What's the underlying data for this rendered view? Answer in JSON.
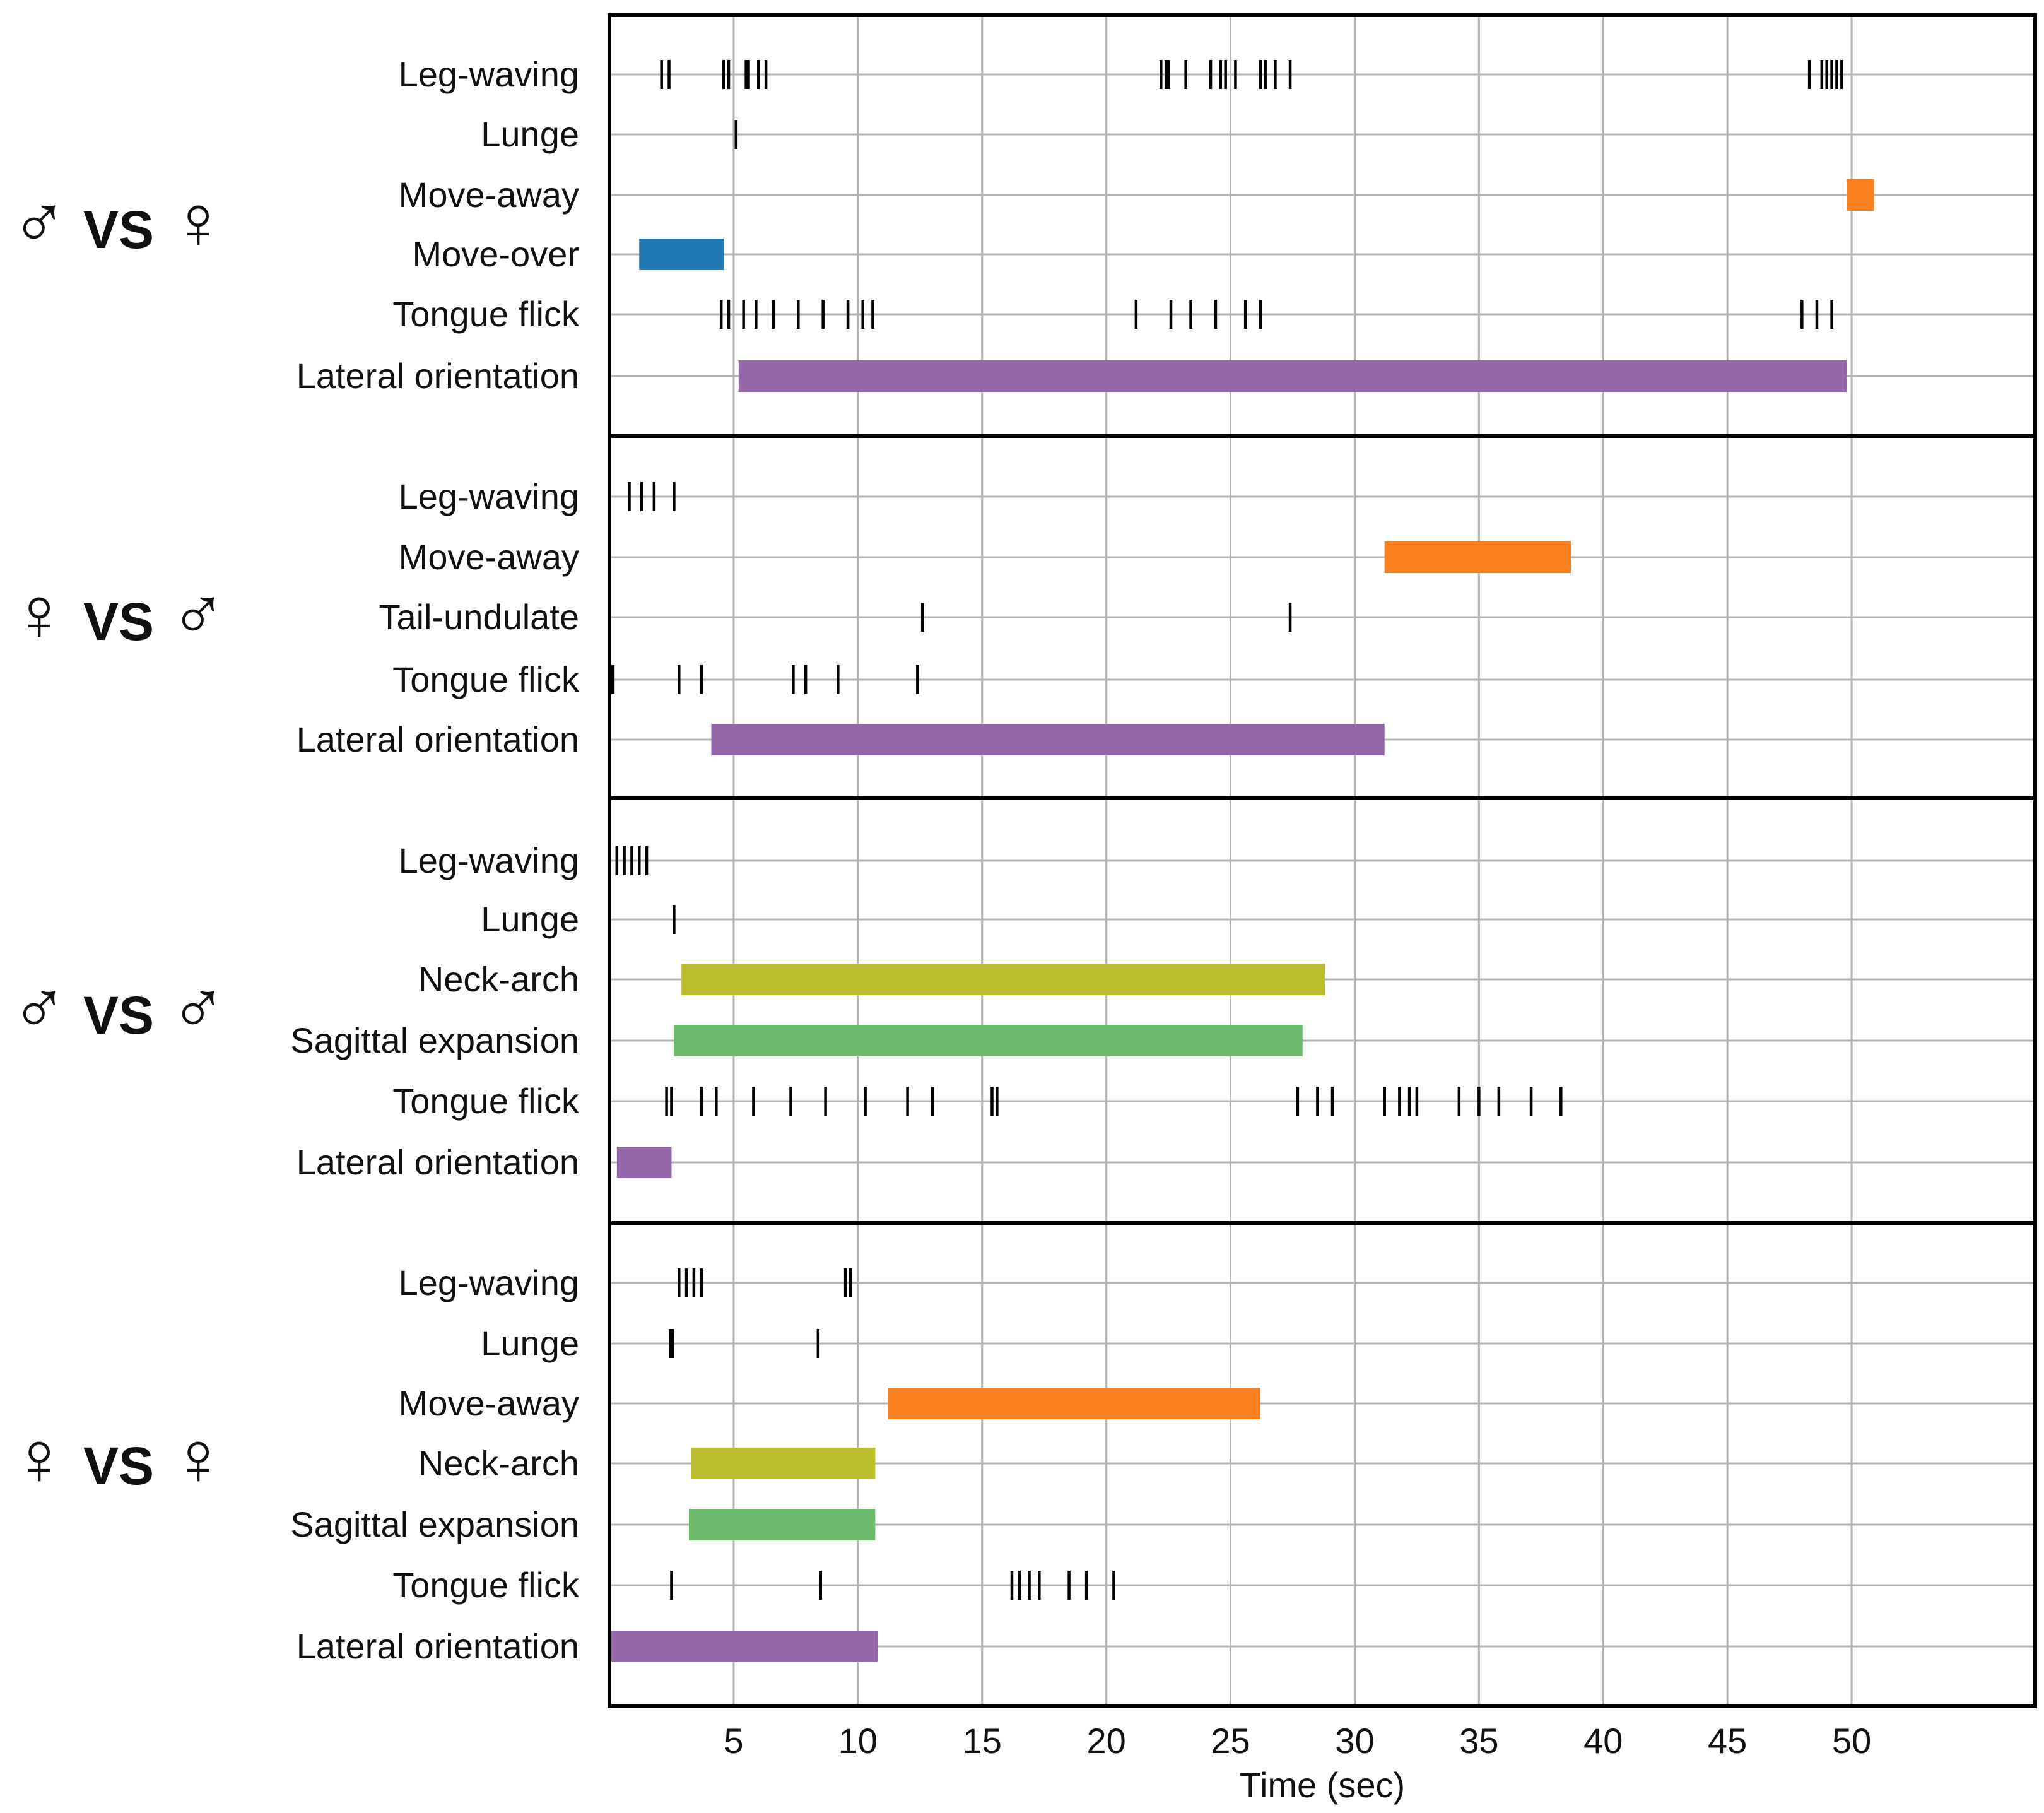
{
  "chart_data": {
    "type": "ethogram-timeline",
    "xlabel": "Time (sec)",
    "xlim": [
      0,
      55
    ],
    "xticks": [
      5,
      10,
      15,
      20,
      25,
      30,
      35,
      40,
      45,
      50
    ],
    "grid": true,
    "colors": {
      "Move-over": "#1f77b4",
      "Move-away": "#f97f1f",
      "Lateral orientation": "#9467ab",
      "Neck-arch": "#bcbd2d",
      "Sagittal expansion": "#6cba6c",
      "events": "#000000"
    },
    "panels": [
      {
        "name": "male-vs-female",
        "left": "♂",
        "vs": "VS",
        "right": "♀",
        "rows": [
          {
            "label": "Leg-waving",
            "events": [
              2.1,
              2.4,
              4.6,
              4.8,
              5.5,
              5.6,
              6.0,
              6.3,
              22.2,
              22.4,
              22.5,
              23.2,
              24.2,
              24.6,
              24.8,
              25.2,
              26.2,
              26.4,
              26.8,
              27.4,
              48.3,
              48.8,
              49.0,
              49.2,
              49.4,
              49.6
            ]
          },
          {
            "label": "Lunge",
            "events": [
              5.1
            ]
          },
          {
            "label": "Move-away",
            "bars": [
              [
                49.8,
                50.9
              ]
            ]
          },
          {
            "label": "Move-over",
            "bars": [
              [
                1.2,
                4.6
              ]
            ]
          },
          {
            "label": "Tongue flick",
            "events": [
              4.5,
              4.8,
              5.4,
              5.9,
              6.6,
              7.6,
              8.6,
              9.6,
              10.2,
              10.6,
              21.2,
              22.6,
              23.4,
              24.4,
              25.6,
              26.2,
              48.0,
              48.6,
              49.2
            ]
          },
          {
            "label": "Lateral orientation",
            "bars": [
              [
                5.2,
                49.8
              ]
            ]
          }
        ]
      },
      {
        "name": "female-vs-male",
        "left": "♀",
        "vs": "VS",
        "right": "♂",
        "rows": [
          {
            "label": "Leg-waving",
            "events": [
              0.8,
              1.3,
              1.8,
              2.6
            ]
          },
          {
            "label": "Move-away",
            "bars": [
              [
                31.2,
                38.7
              ]
            ]
          },
          {
            "label": "Tail-undulate",
            "events": [
              12.6,
              27.4
            ]
          },
          {
            "label": "Tongue flick",
            "events": [
              0.05,
              0.15,
              2.8,
              3.7,
              7.4,
              7.9,
              9.2,
              12.4
            ]
          },
          {
            "label": "Lateral orientation",
            "bars": [
              [
                4.1,
                31.2
              ]
            ]
          }
        ]
      },
      {
        "name": "male-vs-male",
        "left": "♂",
        "vs": "VS",
        "right": "♂",
        "rows": [
          {
            "label": "Leg-waving",
            "events": [
              0.3,
              0.6,
              0.9,
              1.2,
              1.5
            ]
          },
          {
            "label": "Lunge",
            "events": [
              2.6
            ]
          },
          {
            "label": "Neck-arch",
            "bars": [
              [
                2.9,
                28.8
              ]
            ]
          },
          {
            "label": "Sagittal expansion",
            "bars": [
              [
                2.6,
                27.9
              ]
            ]
          },
          {
            "label": "Tongue flick",
            "events": [
              2.3,
              2.5,
              3.7,
              4.3,
              5.8,
              7.3,
              8.7,
              10.3,
              12.0,
              13.0,
              15.4,
              15.6,
              27.7,
              28.5,
              29.1,
              31.2,
              31.8,
              32.2,
              32.5,
              34.2,
              35.0,
              35.8,
              37.1,
              38.3
            ]
          },
          {
            "label": "Lateral orientation",
            "bars": [
              [
                0.3,
                2.5
              ]
            ]
          }
        ]
      },
      {
        "name": "female-vs-female",
        "left": "♀",
        "vs": "VS",
        "right": "♀",
        "rows": [
          {
            "label": "Leg-waving",
            "events": [
              2.8,
              3.1,
              3.4,
              3.7,
              9.5,
              9.7
            ]
          },
          {
            "label": "Lunge",
            "events": [
              2.45,
              2.55,
              8.4
            ]
          },
          {
            "label": "Move-away",
            "bars": [
              [
                11.2,
                26.2
              ]
            ]
          },
          {
            "label": "Neck-arch",
            "bars": [
              [
                3.3,
                10.7
              ]
            ]
          },
          {
            "label": "Sagittal expansion",
            "bars": [
              [
                3.2,
                10.7
              ]
            ]
          },
          {
            "label": "Tongue flick",
            "events": [
              2.5,
              8.5,
              16.2,
              16.5,
              16.9,
              17.3,
              18.5,
              19.2,
              20.3
            ]
          },
          {
            "label": "Lateral orientation",
            "bars": [
              [
                0.0,
                10.8
              ]
            ]
          }
        ]
      }
    ]
  }
}
